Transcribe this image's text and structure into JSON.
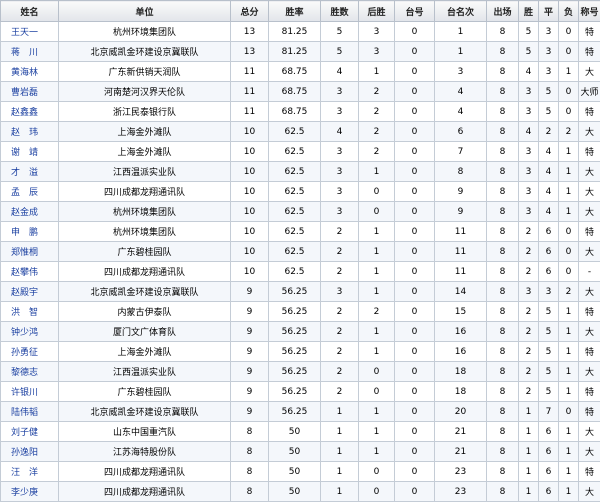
{
  "columns": [
    "姓名",
    "单位",
    "总分",
    "胜率",
    "胜数",
    "后胜",
    "台号",
    "台名次",
    "出场",
    "胜",
    "平",
    "负",
    "称号"
  ],
  "rows": [
    [
      "王天一",
      "杭州环境集团队",
      "13",
      "81.25",
      "5",
      "3",
      "0",
      "1",
      "8",
      "5",
      "3",
      "0",
      "特"
    ],
    [
      "蒋　川",
      "北京威凯金环建设京冀联队",
      "13",
      "81.25",
      "5",
      "3",
      "0",
      "1",
      "8",
      "5",
      "3",
      "0",
      "特"
    ],
    [
      "黄海林",
      "广东新供销天润队",
      "11",
      "68.75",
      "4",
      "1",
      "0",
      "3",
      "8",
      "4",
      "3",
      "1",
      "大"
    ],
    [
      "曹岩磊",
      "河南楚河汉界天伦队",
      "11",
      "68.75",
      "3",
      "2",
      "0",
      "4",
      "8",
      "3",
      "5",
      "0",
      "大师"
    ],
    [
      "赵鑫鑫",
      "浙江民泰银行队",
      "11",
      "68.75",
      "3",
      "2",
      "0",
      "4",
      "8",
      "3",
      "5",
      "0",
      "特"
    ],
    [
      "赵　玮",
      "上海金外滩队",
      "10",
      "62.5",
      "4",
      "2",
      "0",
      "6",
      "8",
      "4",
      "2",
      "2",
      "大"
    ],
    [
      "谢　靖",
      "上海金外滩队",
      "10",
      "62.5",
      "3",
      "2",
      "0",
      "7",
      "8",
      "3",
      "4",
      "1",
      "特"
    ],
    [
      "才　溢",
      "江西温派实业队",
      "10",
      "62.5",
      "3",
      "1",
      "0",
      "8",
      "8",
      "3",
      "4",
      "1",
      "大"
    ],
    [
      "孟　辰",
      "四川成都龙翔通讯队",
      "10",
      "62.5",
      "3",
      "0",
      "0",
      "9",
      "8",
      "3",
      "4",
      "1",
      "大"
    ],
    [
      "赵金成",
      "杭州环境集团队",
      "10",
      "62.5",
      "3",
      "0",
      "0",
      "9",
      "8",
      "3",
      "4",
      "1",
      "大"
    ],
    [
      "申　鹏",
      "杭州环境集团队",
      "10",
      "62.5",
      "2",
      "1",
      "0",
      "11",
      "8",
      "2",
      "6",
      "0",
      "特"
    ],
    [
      "郑惟桐",
      "广东碧桂园队",
      "10",
      "62.5",
      "2",
      "1",
      "0",
      "11",
      "8",
      "2",
      "6",
      "0",
      "大"
    ],
    [
      "赵攀伟",
      "四川成都龙翔通讯队",
      "10",
      "62.5",
      "2",
      "1",
      "0",
      "11",
      "8",
      "2",
      "6",
      "0",
      "-"
    ],
    [
      "赵殿宇",
      "北京威凯金环建设京冀联队",
      "9",
      "56.25",
      "3",
      "1",
      "0",
      "14",
      "8",
      "3",
      "3",
      "2",
      "大"
    ],
    [
      "洪　智",
      "内蒙古伊泰队",
      "9",
      "56.25",
      "2",
      "2",
      "0",
      "15",
      "8",
      "2",
      "5",
      "1",
      "特"
    ],
    [
      "钟少鸿",
      "厦门文广体育队",
      "9",
      "56.25",
      "2",
      "1",
      "0",
      "16",
      "8",
      "2",
      "5",
      "1",
      "大"
    ],
    [
      "孙勇征",
      "上海金外滩队",
      "9",
      "56.25",
      "2",
      "1",
      "0",
      "16",
      "8",
      "2",
      "5",
      "1",
      "特"
    ],
    [
      "黎德志",
      "江西温派实业队",
      "9",
      "56.25",
      "2",
      "0",
      "0",
      "18",
      "8",
      "2",
      "5",
      "1",
      "大"
    ],
    [
      "许银川",
      "广东碧桂园队",
      "9",
      "56.25",
      "2",
      "0",
      "0",
      "18",
      "8",
      "2",
      "5",
      "1",
      "特"
    ],
    [
      "陆伟韬",
      "北京威凯金环建设京冀联队",
      "9",
      "56.25",
      "1",
      "1",
      "0",
      "20",
      "8",
      "1",
      "7",
      "0",
      "特"
    ],
    [
      "刘子健",
      "山东中国重汽队",
      "8",
      "50",
      "1",
      "1",
      "0",
      "21",
      "8",
      "1",
      "6",
      "1",
      "大"
    ],
    [
      "孙逸阳",
      "江苏海特股份队",
      "8",
      "50",
      "1",
      "1",
      "0",
      "21",
      "8",
      "1",
      "6",
      "1",
      "大"
    ],
    [
      "汪　洋",
      "四川成都龙翔通讯队",
      "8",
      "50",
      "1",
      "0",
      "0",
      "23",
      "8",
      "1",
      "6",
      "1",
      "特"
    ],
    [
      "李少庚",
      "四川成都龙翔通讯队",
      "8",
      "50",
      "1",
      "0",
      "0",
      "23",
      "8",
      "1",
      "6",
      "1",
      "大"
    ]
  ]
}
